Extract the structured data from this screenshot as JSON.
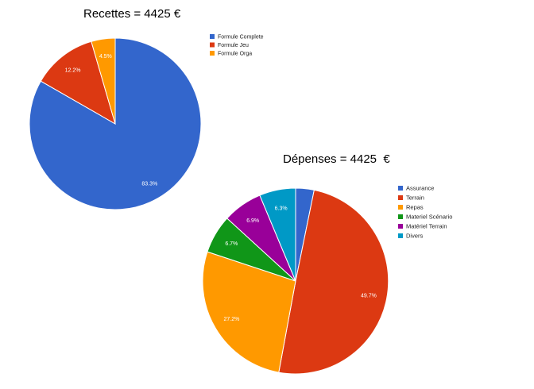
{
  "chart_data": [
    {
      "type": "pie",
      "title": "Recettes = 4425 €",
      "start_angle_deg": 0,
      "legend_position": "right",
      "slices": [
        {
          "label": "Formule Complete",
          "value": 83.3,
          "value_label": "83.3%",
          "color": "#3366cc"
        },
        {
          "label": "Formule Jeu",
          "value": 12.2,
          "value_label": "12.2%",
          "color": "#dc3912"
        },
        {
          "label": "Formule Orga",
          "value": 4.5,
          "value_label": "4.5%",
          "color": "#ff9900"
        }
      ]
    },
    {
      "type": "pie",
      "title": "Dépenses = 4425  €",
      "start_angle_deg": 0,
      "legend_position": "right",
      "slices": [
        {
          "label": "Assurance",
          "value": 3.2,
          "value_label": "",
          "color": "#3366cc"
        },
        {
          "label": "Terrain",
          "value": 49.7,
          "value_label": "49.7%",
          "color": "#dc3912"
        },
        {
          "label": "Repas",
          "value": 27.2,
          "value_label": "27.2%",
          "color": "#ff9900"
        },
        {
          "label": "Materiel Scénario",
          "value": 6.7,
          "value_label": "6.7%",
          "color": "#109618"
        },
        {
          "label": "Matériel Terrain",
          "value": 6.9,
          "value_label": "6.9%",
          "color": "#990099"
        },
        {
          "label": "Divers",
          "value": 6.3,
          "value_label": "6.3%",
          "color": "#0099c6"
        }
      ]
    }
  ]
}
